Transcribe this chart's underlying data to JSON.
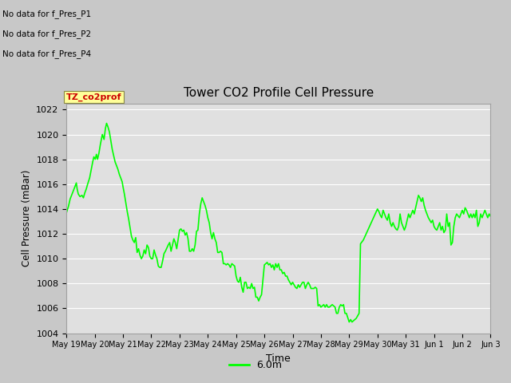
{
  "title": "Tower CO2 Profile Cell Pressure",
  "xlabel": "Time",
  "ylabel": "Cell Pressure (mBar)",
  "ylim": [
    1004,
    1022.5
  ],
  "yticks": [
    1004,
    1006,
    1008,
    1010,
    1012,
    1014,
    1016,
    1018,
    1020,
    1022
  ],
  "line_color": "#00ff00",
  "line_width": 1.2,
  "fig_bg_color": "#c8c8c8",
  "plot_bg_color": "#e0e0e0",
  "legend_label": "6.0m",
  "no_data_lines": [
    "No data for f_Pres_P1",
    "No data for f_Pres_P2",
    "No data for f_Pres_P4"
  ],
  "legend_box_label": "TZ_co2prof",
  "x_tick_labels": [
    "May 19",
    "May 20",
    "May 21",
    "May 22",
    "May 23",
    "May 24",
    "May 25",
    "May 26",
    "May 27",
    "May 28",
    "May 29",
    "May 30",
    "May 31",
    "Jun 1",
    "Jun 2",
    "Jun 3"
  ],
  "pressure_data": [
    [
      0.0,
      1013.7
    ],
    [
      0.07,
      1014.2
    ],
    [
      0.13,
      1014.8
    ],
    [
      0.2,
      1015.2
    ],
    [
      0.25,
      1015.5
    ],
    [
      0.3,
      1015.8
    ],
    [
      0.35,
      1016.1
    ],
    [
      0.38,
      1015.6
    ],
    [
      0.42,
      1015.2
    ],
    [
      0.48,
      1015.0
    ],
    [
      0.55,
      1015.1
    ],
    [
      0.6,
      1014.9
    ],
    [
      0.65,
      1015.3
    ],
    [
      0.7,
      1015.6
    ],
    [
      0.75,
      1016.0
    ],
    [
      0.82,
      1016.5
    ],
    [
      0.88,
      1017.2
    ],
    [
      0.93,
      1017.8
    ],
    [
      0.97,
      1018.2
    ],
    [
      1.02,
      1018.0
    ],
    [
      1.06,
      1018.4
    ],
    [
      1.1,
      1018.0
    ],
    [
      1.15,
      1018.5
    ],
    [
      1.2,
      1019.2
    ],
    [
      1.27,
      1020.0
    ],
    [
      1.33,
      1019.6
    ],
    [
      1.38,
      1020.5
    ],
    [
      1.42,
      1020.9
    ],
    [
      1.47,
      1020.6
    ],
    [
      1.52,
      1020.2
    ],
    [
      1.57,
      1019.5
    ],
    [
      1.62,
      1018.8
    ],
    [
      1.67,
      1018.3
    ],
    [
      1.72,
      1017.8
    ],
    [
      1.77,
      1017.5
    ],
    [
      1.82,
      1017.2
    ],
    [
      1.87,
      1016.8
    ],
    [
      1.92,
      1016.5
    ],
    [
      1.97,
      1016.2
    ],
    [
      2.0,
      1015.8
    ],
    [
      2.05,
      1015.2
    ],
    [
      2.1,
      1014.5
    ],
    [
      2.15,
      1013.8
    ],
    [
      2.2,
      1013.2
    ],
    [
      2.25,
      1012.5
    ],
    [
      2.3,
      1011.8
    ],
    [
      2.35,
      1011.5
    ],
    [
      2.4,
      1011.3
    ],
    [
      2.45,
      1011.7
    ],
    [
      2.5,
      1010.5
    ],
    [
      2.55,
      1010.8
    ],
    [
      2.6,
      1010.3
    ],
    [
      2.65,
      1010.0
    ],
    [
      2.7,
      1010.2
    ],
    [
      2.75,
      1010.7
    ],
    [
      2.8,
      1010.4
    ],
    [
      2.85,
      1011.1
    ],
    [
      2.9,
      1010.9
    ],
    [
      2.95,
      1010.2
    ],
    [
      3.0,
      1010.0
    ],
    [
      3.05,
      1010.0
    ],
    [
      3.1,
      1010.7
    ],
    [
      3.15,
      1010.3
    ],
    [
      3.2,
      1010.0
    ],
    [
      3.25,
      1009.4
    ],
    [
      3.3,
      1009.3
    ],
    [
      3.35,
      1009.3
    ],
    [
      3.4,
      1009.8
    ],
    [
      3.45,
      1010.4
    ],
    [
      3.5,
      1010.6
    ],
    [
      3.6,
      1011.1
    ],
    [
      3.65,
      1011.3
    ],
    [
      3.7,
      1010.6
    ],
    [
      3.75,
      1011.1
    ],
    [
      3.8,
      1011.6
    ],
    [
      3.85,
      1011.3
    ],
    [
      3.9,
      1010.8
    ],
    [
      4.0,
      1012.3
    ],
    [
      4.05,
      1012.4
    ],
    [
      4.1,
      1012.2
    ],
    [
      4.15,
      1012.3
    ],
    [
      4.2,
      1011.9
    ],
    [
      4.25,
      1012.1
    ],
    [
      4.3,
      1011.6
    ],
    [
      4.35,
      1010.6
    ],
    [
      4.4,
      1010.6
    ],
    [
      4.45,
      1010.8
    ],
    [
      4.5,
      1010.6
    ],
    [
      4.55,
      1011.1
    ],
    [
      4.6,
      1012.2
    ],
    [
      4.65,
      1012.3
    ],
    [
      4.7,
      1013.6
    ],
    [
      4.75,
      1014.4
    ],
    [
      4.8,
      1014.9
    ],
    [
      4.85,
      1014.6
    ],
    [
      4.9,
      1014.3
    ],
    [
      4.95,
      1013.9
    ],
    [
      5.0,
      1013.3
    ],
    [
      5.05,
      1012.9
    ],
    [
      5.1,
      1012.1
    ],
    [
      5.15,
      1011.6
    ],
    [
      5.2,
      1012.1
    ],
    [
      5.25,
      1011.6
    ],
    [
      5.3,
      1011.3
    ],
    [
      5.35,
      1010.5
    ],
    [
      5.4,
      1010.5
    ],
    [
      5.45,
      1010.6
    ],
    [
      5.5,
      1010.5
    ],
    [
      5.55,
      1009.6
    ],
    [
      5.6,
      1009.6
    ],
    [
      5.65,
      1009.5
    ],
    [
      5.7,
      1009.6
    ],
    [
      5.75,
      1009.5
    ],
    [
      5.8,
      1009.3
    ],
    [
      5.85,
      1009.6
    ],
    [
      5.9,
      1009.5
    ],
    [
      5.95,
      1009.4
    ],
    [
      6.0,
      1008.6
    ],
    [
      6.05,
      1008.2
    ],
    [
      6.1,
      1008.1
    ],
    [
      6.15,
      1008.5
    ],
    [
      6.2,
      1007.7
    ],
    [
      6.25,
      1007.3
    ],
    [
      6.3,
      1008.1
    ],
    [
      6.35,
      1008.1
    ],
    [
      6.4,
      1007.6
    ],
    [
      6.45,
      1007.7
    ],
    [
      6.5,
      1007.6
    ],
    [
      6.55,
      1008.0
    ],
    [
      6.6,
      1007.6
    ],
    [
      6.65,
      1007.7
    ],
    [
      6.7,
      1006.9
    ],
    [
      6.75,
      1006.9
    ],
    [
      6.8,
      1006.6
    ],
    [
      6.85,
      1006.9
    ],
    [
      6.9,
      1007.1
    ],
    [
      7.0,
      1009.5
    ],
    [
      7.05,
      1009.6
    ],
    [
      7.1,
      1009.7
    ],
    [
      7.15,
      1009.5
    ],
    [
      7.2,
      1009.6
    ],
    [
      7.25,
      1009.3
    ],
    [
      7.3,
      1009.5
    ],
    [
      7.35,
      1009.1
    ],
    [
      7.4,
      1009.6
    ],
    [
      7.45,
      1009.3
    ],
    [
      7.5,
      1009.6
    ],
    [
      7.55,
      1009.1
    ],
    [
      7.6,
      1009.1
    ],
    [
      7.65,
      1008.8
    ],
    [
      7.7,
      1008.9
    ],
    [
      7.75,
      1008.6
    ],
    [
      7.8,
      1008.6
    ],
    [
      7.85,
      1008.3
    ],
    [
      7.9,
      1008.1
    ],
    [
      7.95,
      1007.9
    ],
    [
      8.0,
      1008.1
    ],
    [
      8.05,
      1007.9
    ],
    [
      8.1,
      1007.7
    ],
    [
      8.15,
      1007.6
    ],
    [
      8.2,
      1007.9
    ],
    [
      8.25,
      1007.7
    ],
    [
      8.3,
      1007.9
    ],
    [
      8.35,
      1008.1
    ],
    [
      8.4,
      1008.1
    ],
    [
      8.45,
      1007.6
    ],
    [
      8.5,
      1007.9
    ],
    [
      8.55,
      1008.1
    ],
    [
      8.6,
      1007.9
    ],
    [
      8.65,
      1007.6
    ],
    [
      8.7,
      1007.6
    ],
    [
      8.75,
      1007.6
    ],
    [
      8.8,
      1007.7
    ],
    [
      8.85,
      1007.6
    ],
    [
      8.9,
      1006.2
    ],
    [
      8.95,
      1006.3
    ],
    [
      9.0,
      1006.1
    ],
    [
      9.05,
      1006.2
    ],
    [
      9.1,
      1006.3
    ],
    [
      9.15,
      1006.1
    ],
    [
      9.2,
      1006.3
    ],
    [
      9.25,
      1006.1
    ],
    [
      9.3,
      1006.1
    ],
    [
      9.35,
      1006.2
    ],
    [
      9.4,
      1006.3
    ],
    [
      9.45,
      1006.2
    ],
    [
      9.5,
      1006.1
    ],
    [
      9.55,
      1005.6
    ],
    [
      9.6,
      1005.6
    ],
    [
      9.65,
      1006.1
    ],
    [
      9.7,
      1006.3
    ],
    [
      9.75,
      1006.2
    ],
    [
      9.8,
      1006.3
    ],
    [
      9.85,
      1005.6
    ],
    [
      9.9,
      1005.6
    ],
    [
      10.0,
      1004.9
    ],
    [
      10.05,
      1005.1
    ],
    [
      10.1,
      1004.9
    ],
    [
      10.15,
      1005.0
    ],
    [
      10.2,
      1005.1
    ],
    [
      10.25,
      1005.2
    ],
    [
      10.3,
      1005.4
    ],
    [
      10.35,
      1005.6
    ],
    [
      10.4,
      1011.2
    ],
    [
      10.5,
      1011.5
    ],
    [
      10.6,
      1012.0
    ],
    [
      10.7,
      1012.5
    ],
    [
      10.8,
      1013.0
    ],
    [
      10.9,
      1013.5
    ],
    [
      11.0,
      1014.0
    ],
    [
      11.05,
      1013.8
    ],
    [
      11.1,
      1013.5
    ],
    [
      11.15,
      1013.3
    ],
    [
      11.2,
      1013.9
    ],
    [
      11.25,
      1013.6
    ],
    [
      11.3,
      1013.3
    ],
    [
      11.35,
      1013.1
    ],
    [
      11.4,
      1013.6
    ],
    [
      11.45,
      1012.9
    ],
    [
      11.5,
      1012.6
    ],
    [
      11.55,
      1012.9
    ],
    [
      11.6,
      1012.6
    ],
    [
      11.65,
      1012.4
    ],
    [
      11.7,
      1012.3
    ],
    [
      11.75,
      1012.6
    ],
    [
      11.8,
      1013.6
    ],
    [
      11.85,
      1012.9
    ],
    [
      11.9,
      1012.6
    ],
    [
      11.95,
      1012.3
    ],
    [
      12.0,
      1012.6
    ],
    [
      12.05,
      1013.1
    ],
    [
      12.1,
      1013.6
    ],
    [
      12.15,
      1013.3
    ],
    [
      12.2,
      1013.6
    ],
    [
      12.25,
      1013.9
    ],
    [
      12.3,
      1013.6
    ],
    [
      12.35,
      1014.1
    ],
    [
      12.4,
      1014.6
    ],
    [
      12.45,
      1015.1
    ],
    [
      12.5,
      1014.9
    ],
    [
      12.55,
      1014.6
    ],
    [
      12.6,
      1014.9
    ],
    [
      12.65,
      1014.3
    ],
    [
      12.7,
      1013.9
    ],
    [
      12.75,
      1013.6
    ],
    [
      12.8,
      1013.3
    ],
    [
      12.85,
      1013.1
    ],
    [
      12.9,
      1012.9
    ],
    [
      12.95,
      1013.1
    ],
    [
      13.0,
      1012.6
    ],
    [
      13.05,
      1012.4
    ],
    [
      13.1,
      1012.3
    ],
    [
      13.15,
      1012.6
    ],
    [
      13.2,
      1012.9
    ],
    [
      13.25,
      1012.3
    ],
    [
      13.3,
      1012.6
    ],
    [
      13.35,
      1012.1
    ],
    [
      13.4,
      1012.3
    ],
    [
      13.45,
      1013.6
    ],
    [
      13.5,
      1012.6
    ],
    [
      13.55,
      1012.9
    ],
    [
      13.6,
      1011.1
    ],
    [
      13.65,
      1011.3
    ],
    [
      13.7,
      1012.6
    ],
    [
      13.75,
      1013.3
    ],
    [
      13.8,
      1013.6
    ],
    [
      13.9,
      1013.3
    ],
    [
      13.95,
      1013.6
    ],
    [
      14.0,
      1013.9
    ],
    [
      14.05,
      1013.6
    ],
    [
      14.1,
      1014.1
    ],
    [
      14.15,
      1013.9
    ],
    [
      14.2,
      1013.6
    ],
    [
      14.25,
      1013.3
    ],
    [
      14.3,
      1013.6
    ],
    [
      14.35,
      1013.3
    ],
    [
      14.4,
      1013.6
    ],
    [
      14.45,
      1013.3
    ],
    [
      14.5,
      1013.9
    ],
    [
      14.55,
      1012.6
    ],
    [
      14.6,
      1012.9
    ],
    [
      14.65,
      1013.6
    ],
    [
      14.7,
      1013.3
    ],
    [
      14.75,
      1013.6
    ],
    [
      14.8,
      1013.9
    ],
    [
      14.9,
      1013.3
    ],
    [
      14.95,
      1013.6
    ],
    [
      15.0,
      1013.4
    ]
  ]
}
